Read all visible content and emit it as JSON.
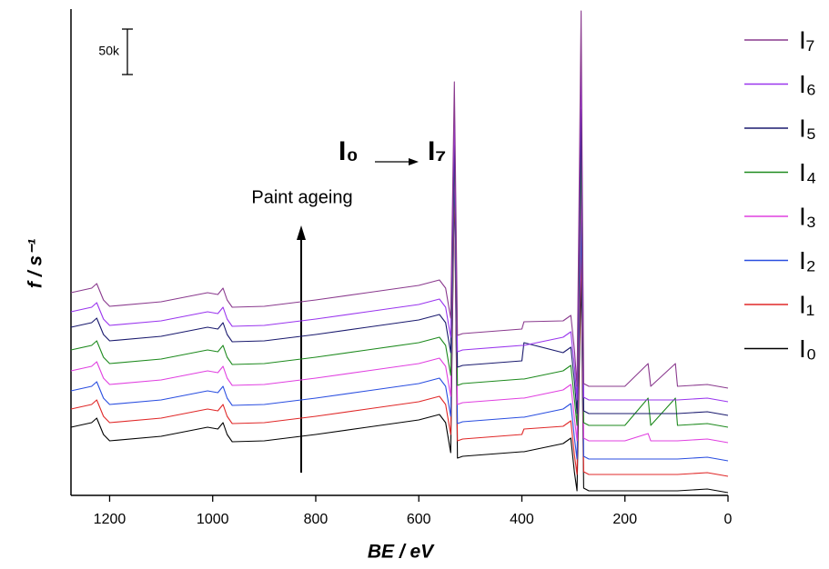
{
  "chart_data": {
    "type": "line",
    "x_label": "BE / eV",
    "y_label": "f / s⁻¹",
    "annotation": {
      "from": "I₀",
      "to": "I₇",
      "label": "Paint ageing"
    },
    "scale_bar": {
      "value": 50000,
      "label": "50k"
    },
    "xlim": [
      1275,
      0
    ],
    "xticks": [
      1200,
      1000,
      800,
      600,
      400,
      200,
      0
    ],
    "ylim": [
      0,
      535000
    ],
    "x": [
      1275,
      1235,
      1225,
      1212,
      1200,
      1100,
      1010,
      990,
      980,
      972,
      962,
      900,
      800,
      700,
      600,
      560,
      548,
      538,
      531,
      525,
      515,
      400,
      396,
      320,
      305,
      298,
      293,
      285,
      280,
      270,
      200,
      155,
      150,
      102,
      98,
      40,
      20,
      0
    ],
    "series": [
      {
        "name": "I₀",
        "color": "#000000",
        "values": [
          75000,
          80000,
          85000,
          67000,
          60000,
          65000,
          75000,
          73000,
          80000,
          67000,
          59000,
          60000,
          67000,
          75000,
          83000,
          89000,
          80000,
          47000,
          345000,
          41000,
          43000,
          48000,
          48000,
          57000,
          63000,
          25000,
          5000,
          245000,
          8000,
          5000,
          5000,
          5000,
          5000,
          5000,
          5000,
          7000,
          5000,
          3000
        ]
      },
      {
        "name": "I₁",
        "color": "#e02828",
        "values": [
          95000,
          100000,
          105000,
          87000,
          80000,
          85000,
          95000,
          93000,
          100000,
          87000,
          79000,
          80000,
          87000,
          95000,
          103000,
          109000,
          100000,
          67000,
          355000,
          60000,
          62000,
          67000,
          73000,
          76000,
          82000,
          44000,
          23000,
          275000,
          26000,
          23000,
          23000,
          23000,
          23000,
          23000,
          23000,
          25000,
          23000,
          21000
        ]
      },
      {
        "name": "I₂",
        "color": "#2a4ee0",
        "values": [
          115000,
          120000,
          125000,
          107000,
          100000,
          105000,
          115000,
          113000,
          120000,
          107000,
          99000,
          100000,
          107000,
          115000,
          123000,
          129000,
          120000,
          87000,
          365000,
          79000,
          81000,
          86000,
          86000,
          95000,
          101000,
          63000,
          40000,
          305000,
          43000,
          40000,
          40000,
          40000,
          40000,
          40000,
          40000,
          42000,
          40000,
          38000
        ]
      },
      {
        "name": "I₃",
        "color": "#e040e0",
        "values": [
          137000,
          142000,
          147000,
          129000,
          122000,
          127000,
          137000,
          135000,
          142000,
          129000,
          121000,
          122000,
          129000,
          137000,
          145000,
          151000,
          142000,
          109000,
          375000,
          100000,
          102000,
          107000,
          107000,
          116000,
          122000,
          84000,
          60000,
          345000,
          63000,
          60000,
          60000,
          68000,
          60000,
          60000,
          60000,
          62000,
          60000,
          58000
        ]
      },
      {
        "name": "I₄",
        "color": "#1e8a1e",
        "values": [
          160000,
          165000,
          170000,
          152000,
          145000,
          150000,
          160000,
          158000,
          165000,
          152000,
          144000,
          145000,
          152000,
          160000,
          168000,
          174000,
          165000,
          132000,
          385000,
          121000,
          123000,
          128000,
          128000,
          137000,
          143000,
          105000,
          77000,
          385000,
          80000,
          77000,
          77000,
          107000,
          77000,
          107000,
          77000,
          79000,
          77000,
          75000
        ]
      },
      {
        "name": "I₅",
        "color": "#1a1a6e",
        "values": [
          185000,
          190000,
          195000,
          177000,
          170000,
          175000,
          185000,
          183000,
          190000,
          177000,
          169000,
          170000,
          177000,
          185000,
          193000,
          199000,
          190000,
          157000,
          395000,
          141000,
          143000,
          148000,
          168000,
          157000,
          163000,
          125000,
          90000,
          425000,
          93000,
          90000,
          90000,
          90000,
          90000,
          90000,
          90000,
          92000,
          90000,
          88000
        ]
      },
      {
        "name": "I₆",
        "color": "#9a35ee",
        "values": [
          202000,
          207000,
          212000,
          194000,
          187000,
          192000,
          202000,
          200000,
          207000,
          194000,
          186000,
          187000,
          194000,
          202000,
          210000,
          216000,
          207000,
          174000,
          425000,
          158000,
          160000,
          165000,
          165000,
          174000,
          180000,
          142000,
          105000,
          485000,
          108000,
          105000,
          105000,
          105000,
          105000,
          105000,
          105000,
          107000,
          105000,
          103000
        ]
      },
      {
        "name": "I₇",
        "color": "#8a3a8e",
        "values": [
          223000,
          228000,
          233000,
          215000,
          208000,
          213000,
          223000,
          221000,
          228000,
          215000,
          207000,
          208000,
          215000,
          223000,
          231000,
          237000,
          228000,
          195000,
          455000,
          176000,
          178000,
          183000,
          191000,
          192000,
          198000,
          160000,
          120000,
          533000,
          123000,
          120000,
          120000,
          145000,
          120000,
          145000,
          120000,
          122000,
          120000,
          118000
        ]
      }
    ]
  }
}
